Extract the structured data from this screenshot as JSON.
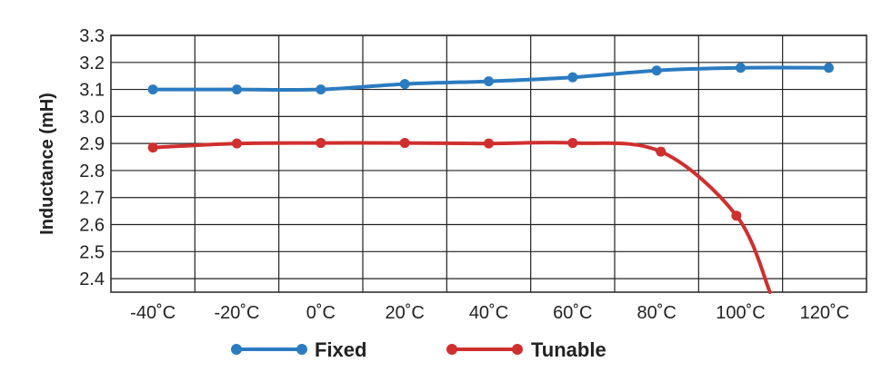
{
  "chart_data": {
    "type": "line",
    "title": "",
    "xlabel": "",
    "ylabel": "Inductance (mH)",
    "categories": [
      "-40˚C",
      "-20˚C",
      "0˚C",
      "20˚C",
      "40˚C",
      "60˚C",
      "80˚C",
      "100˚C",
      "120˚C"
    ],
    "x": [
      -40,
      -20,
      0,
      20,
      40,
      60,
      80,
      100,
      120
    ],
    "ylim": [
      2.35,
      3.3
    ],
    "xlim": [
      -50,
      130
    ],
    "yticks": [
      2.4,
      2.5,
      2.6,
      2.7,
      2.8,
      2.9,
      3.0,
      3.1,
      3.2,
      3.3
    ],
    "ytick_labels": [
      "2.4",
      "2.5",
      "2.6",
      "2.7",
      "2.8",
      "2.9",
      "3.0",
      "3.1",
      "3.2",
      "3.3"
    ],
    "grid": true,
    "legend_position": "bottom",
    "series": [
      {
        "name": "Fixed",
        "color": "#2b7bc0",
        "points": [
          [
            -40,
            3.1
          ],
          [
            -20,
            3.1
          ],
          [
            0,
            3.1
          ],
          [
            20,
            3.12
          ],
          [
            40,
            3.13
          ],
          [
            60,
            3.145
          ],
          [
            80,
            3.17
          ],
          [
            100,
            3.18
          ],
          [
            121,
            3.18
          ]
        ]
      },
      {
        "name": "Tunable",
        "color": "#cf2f2f",
        "points": [
          [
            -40,
            2.885
          ],
          [
            -20,
            2.9
          ],
          [
            0,
            2.902
          ],
          [
            20,
            2.902
          ],
          [
            40,
            2.9
          ],
          [
            60,
            2.902
          ],
          [
            81,
            2.87
          ],
          [
            99,
            2.633
          ]
        ],
        "curve_end": [
          107,
          2.35
        ]
      }
    ]
  }
}
